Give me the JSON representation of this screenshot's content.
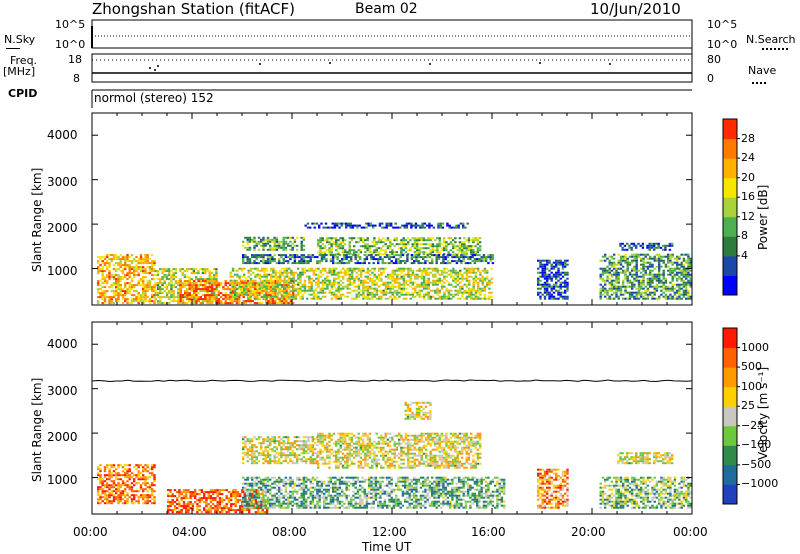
{
  "header": {
    "station": "Zhongshan Station (fitACF)",
    "beam": "Beam 02",
    "date": "10/Jun/2010"
  },
  "strip": {
    "nsky_label": "N.Sky",
    "nsky_ticks": [
      "10^5",
      "10^0"
    ],
    "nsearch_label": "N.Search",
    "nsearch_ticks": [
      "10^5",
      "10^0"
    ],
    "freq_label": "Freq.",
    "freq_unit": "[MHz]",
    "freq_ticks": [
      "18",
      "8"
    ],
    "nave_label": "Nave",
    "nave_ticks": [
      "80",
      "0"
    ],
    "cpid_label": "CPID",
    "cpid_text": "normol (stereo) 152"
  },
  "chart_data": [
    {
      "type": "heatmap",
      "title": "",
      "xlabel": "Time UT",
      "ylabel": "Slant Range [km]",
      "x_ticks": [
        "00:00",
        "04:00",
        "08:00",
        "12:00",
        "16:00",
        "20:00",
        "00:00"
      ],
      "xlim_hours": [
        0,
        24
      ],
      "ylim": [
        180,
        4500
      ],
      "y_ticks": [
        1000,
        2000,
        3000,
        4000
      ],
      "colorbar": {
        "label": "Power [dB]",
        "ticks": [
          "28",
          "24",
          "20",
          "16",
          "12",
          "8",
          "4"
        ],
        "colors": [
          "#0000ff",
          "#1a47a8",
          "#2e7c3c",
          "#4caf50",
          "#a8d13a",
          "#f7e600",
          "#ffb000",
          "#ff7a00",
          "#ff2a00"
        ]
      },
      "regions": [
        {
          "t": [
            0.2,
            2.5
          ],
          "r": [
            200,
            1300
          ],
          "level": 0.7
        },
        {
          "t": [
            2.5,
            5.0
          ],
          "r": [
            200,
            1000
          ],
          "level": 0.55
        },
        {
          "t": [
            3.5,
            8.0
          ],
          "r": [
            200,
            700
          ],
          "level": 0.85
        },
        {
          "t": [
            5.5,
            16.0
          ],
          "r": [
            300,
            1000
          ],
          "level": 0.55
        },
        {
          "t": [
            6.0,
            8.5
          ],
          "r": [
            1400,
            1700
          ],
          "level": 0.4
        },
        {
          "t": [
            9.0,
            15.5
          ],
          "r": [
            1300,
            1700
          ],
          "level": 0.45
        },
        {
          "t": [
            6.0,
            16.0
          ],
          "r": [
            1100,
            1300
          ],
          "level": 0.25
        },
        {
          "t": [
            8.5,
            15.0
          ],
          "r": [
            1900,
            2000
          ],
          "level": 0.15
        },
        {
          "t": [
            17.8,
            19.0
          ],
          "r": [
            300,
            1200
          ],
          "level": 0.15
        },
        {
          "t": [
            20.3,
            23.9
          ],
          "r": [
            300,
            1300
          ],
          "level": 0.35
        },
        {
          "t": [
            21.0,
            23.2
          ],
          "r": [
            1400,
            1550
          ],
          "level": 0.2
        }
      ]
    },
    {
      "type": "heatmap",
      "title": "",
      "xlabel": "Time UT",
      "ylabel": "Slant Range [km]",
      "x_ticks": [
        "00:00",
        "04:00",
        "08:00",
        "12:00",
        "16:00",
        "20:00",
        "00:00"
      ],
      "xlim_hours": [
        0,
        24
      ],
      "ylim": [
        180,
        4500
      ],
      "y_ticks": [
        1000,
        2000,
        3000,
        4000
      ],
      "colorbar": {
        "label": "Velocity [m s⁻¹]",
        "ticks": [
          "1000",
          "500",
          "100",
          "25",
          "−25",
          "−100",
          "−500",
          "−1000"
        ],
        "colors": [
          "#2040c0",
          "#1e6b9c",
          "#2f8a4c",
          "#6cc83c",
          "#c8c8c0",
          "#ffd000",
          "#ff9a00",
          "#ff6000",
          "#ff1a00"
        ]
      },
      "regions": [
        {
          "t": [
            0.2,
            2.5
          ],
          "r": [
            400,
            1300
          ],
          "level": 0.8
        },
        {
          "t": [
            3.0,
            7.0
          ],
          "r": [
            200,
            700
          ],
          "level": 0.85
        },
        {
          "t": [
            6.0,
            16.5
          ],
          "r": [
            300,
            1000
          ],
          "level": 0.35
        },
        {
          "t": [
            6.0,
            9.0
          ],
          "r": [
            1300,
            1900
          ],
          "level": 0.55
        },
        {
          "t": [
            9.0,
            15.5
          ],
          "r": [
            1200,
            2000
          ],
          "level": 0.55
        },
        {
          "t": [
            12.5,
            13.5
          ],
          "r": [
            2300,
            2700
          ],
          "level": 0.55
        },
        {
          "t": [
            17.8,
            19.0
          ],
          "r": [
            300,
            1200
          ],
          "level": 0.75
        },
        {
          "t": [
            20.3,
            23.9
          ],
          "r": [
            300,
            1000
          ],
          "level": 0.4
        },
        {
          "t": [
            21.0,
            23.2
          ],
          "r": [
            1300,
            1550
          ],
          "level": 0.55
        }
      ]
    }
  ]
}
